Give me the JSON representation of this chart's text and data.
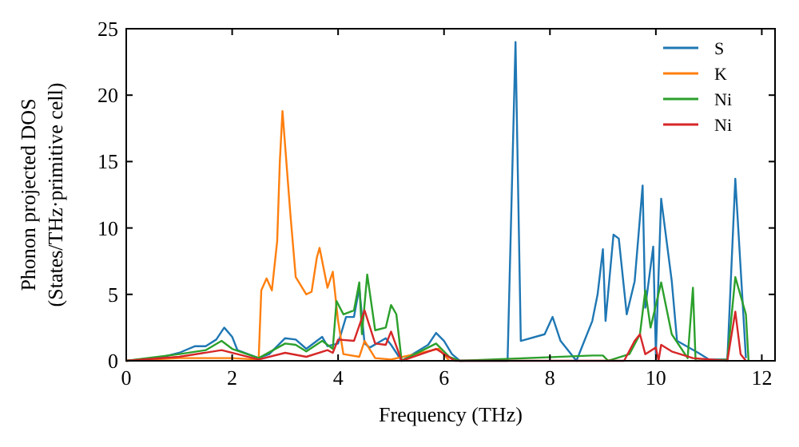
{
  "chart_data": {
    "type": "line",
    "xlabel": "Frequency (THz)",
    "ylabel": "Phonon projected DOS\n(States/THz·primitive cell)",
    "xlim": [
      0,
      12.25
    ],
    "ylim": [
      0,
      25
    ],
    "xticks": [
      0,
      2,
      4,
      6,
      8,
      10,
      12
    ],
    "yticks": [
      0,
      5,
      10,
      15,
      20,
      25
    ],
    "legend": "top right",
    "grid": false,
    "series": [
      {
        "name": "S",
        "color": "#1f77b4",
        "x": [
          0,
          0.5,
          1,
          1.3,
          1.5,
          1.7,
          1.85,
          2.0,
          2.1,
          2.5,
          2.7,
          3.0,
          3.2,
          3.4,
          3.7,
          3.8,
          4.0,
          4.15,
          4.3,
          4.4,
          4.5,
          4.6,
          4.9,
          5.0,
          5.2,
          5.7,
          5.85,
          6.0,
          6.15,
          6.3,
          7.2,
          7.35,
          7.45,
          7.9,
          8.05,
          8.2,
          8.5,
          8.8,
          8.9,
          9.0,
          9.05,
          9.2,
          9.3,
          9.45,
          9.6,
          9.75,
          9.8,
          9.95,
          10.0,
          10.1,
          10.3,
          10.4,
          10.8,
          11.0,
          11.35,
          11.5,
          11.6,
          11.7
        ],
        "values": [
          0,
          0.1,
          0.6,
          1.1,
          1.1,
          1.6,
          2.5,
          1.8,
          0.8,
          0.2,
          0.5,
          1.7,
          1.6,
          0.9,
          1.8,
          1.1,
          1.3,
          3.3,
          3.3,
          5.5,
          1.3,
          1,
          1.7,
          1.2,
          0,
          1.2,
          2.1,
          1.5,
          0.5,
          0,
          0,
          24,
          1.5,
          2,
          3.3,
          1.5,
          0,
          3,
          5,
          8.4,
          3,
          9.5,
          9.2,
          3.5,
          6,
          13.2,
          4,
          8.6,
          0.5,
          12.2,
          6,
          1.5,
          0.6,
          0.1,
          0.1,
          13.7,
          7,
          0.2
        ]
      },
      {
        "name": "K",
        "color": "#ff7f0e",
        "x": [
          0,
          1,
          2,
          2.5,
          2.55,
          2.65,
          2.75,
          2.85,
          2.9,
          2.95,
          3.1,
          3.2,
          3.4,
          3.5,
          3.6,
          3.65,
          3.8,
          3.9,
          4.0,
          4.1,
          4.4,
          4.5,
          4.7,
          5.0,
          5.9,
          6.1
        ],
        "values": [
          0,
          0.2,
          0.2,
          0.1,
          5.3,
          6.2,
          5.3,
          9,
          15,
          18.8,
          11,
          6.3,
          5,
          5.2,
          7.8,
          8.5,
          5.5,
          6.7,
          3,
          0.5,
          0.3,
          1.5,
          0.2,
          0.1,
          0.9,
          0
        ]
      },
      {
        "name": "Ni",
        "color": "#2ca02c",
        "x": [
          0,
          1,
          1.5,
          1.8,
          2.0,
          2.5,
          3.0,
          3.2,
          3.4,
          3.7,
          3.9,
          3.97,
          4.1,
          4.3,
          4.4,
          4.45,
          4.55,
          4.7,
          4.9,
          5.0,
          5.1,
          5.2,
          5.85,
          6.1,
          6.3,
          8.8,
          9.0,
          9.1,
          9.5,
          9.7,
          9.8,
          9.9,
          10.1,
          10.3,
          10.6,
          10.7,
          10.75,
          11.35,
          11.5,
          11.7,
          11.75
        ],
        "values": [
          0,
          0.5,
          0.8,
          1.5,
          0.9,
          0.2,
          1.3,
          1.2,
          0.7,
          1.5,
          0.9,
          4.5,
          3.5,
          3.8,
          5.9,
          2,
          6.5,
          2.3,
          2.5,
          4.2,
          3.5,
          0,
          1.3,
          0.3,
          0,
          0.4,
          0.4,
          0,
          0.5,
          2,
          5.3,
          2.5,
          5.9,
          2,
          0.2,
          5.5,
          0,
          0.1,
          6.3,
          3.5,
          0
        ]
      },
      {
        "name": "Ni",
        "color": "#d62728",
        "x": [
          0,
          1,
          1.8,
          2.5,
          3.0,
          3.4,
          3.8,
          3.9,
          4.0,
          4.3,
          4.5,
          4.7,
          4.9,
          5.0,
          5.2,
          5.85,
          6.2,
          9.4,
          9.6,
          9.7,
          9.8,
          10.0,
          10.05,
          10.1,
          10.3,
          10.7,
          11.35,
          11.5,
          11.6,
          11.7
        ],
        "values": [
          0,
          0.3,
          0.8,
          0.1,
          0.6,
          0.3,
          0.8,
          0.6,
          1.6,
          1.5,
          3.8,
          1.3,
          1.2,
          2.2,
          0,
          0.9,
          0,
          0,
          1.5,
          2,
          0.5,
          1,
          0,
          1.2,
          0.7,
          0.2,
          0,
          3.7,
          0.5,
          0
        ]
      }
    ]
  }
}
